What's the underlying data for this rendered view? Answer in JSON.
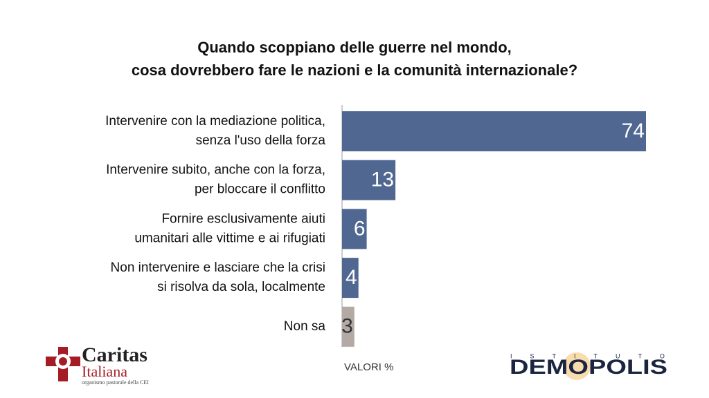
{
  "chart_data": {
    "type": "bar",
    "orientation": "horizontal",
    "title": [
      "Quando scoppiano delle guerre nel mondo,",
      "cosa dovrebbero fare le nazioni e la comunità internazionale?"
    ],
    "categories": [
      [
        "Intervenire con la mediazione politica,",
        "senza l'uso della forza"
      ],
      [
        "Intervenire subito, anche con la forza,",
        "per bloccare il conflitto"
      ],
      [
        "Fornire esclusivamente aiuti",
        "umanitari alle vittime e ai rifugiati"
      ],
      [
        "Non intervenire e lasciare che la crisi",
        "si risolva da sola, localmente"
      ],
      [
        "Non sa"
      ]
    ],
    "values": [
      74,
      13,
      6,
      4,
      3
    ],
    "colors": [
      "#4f6791",
      "#4f6791",
      "#4f6791",
      "#4f6791",
      "#b3aaa5"
    ],
    "label_colors": [
      "#ffffff",
      "#ffffff",
      "#ffffff",
      "#ffffff",
      "#333333"
    ],
    "xlim": [
      0,
      74
    ],
    "note": "VALORI %"
  },
  "logos": {
    "caritas": [
      "Caritas",
      "Italiana",
      "organismo pastorale della CEI"
    ],
    "demopolis": [
      "ISTITUTO",
      "DEMOPOLIS"
    ]
  }
}
